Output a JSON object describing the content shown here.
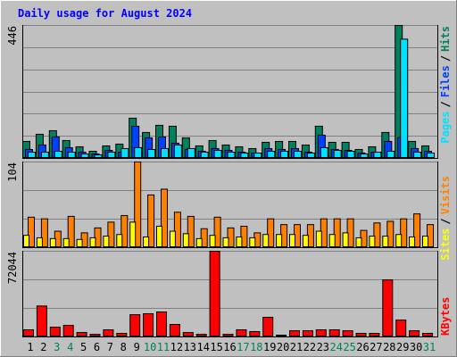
{
  "title": "Daily usage for August 2024",
  "legend_separator": "/",
  "categories": [
    "1",
    "2",
    "3",
    "4",
    "5",
    "6",
    "7",
    "8",
    "9",
    "10",
    "11",
    "12",
    "13",
    "14",
    "15",
    "16",
    "17",
    "18",
    "19",
    "20",
    "21",
    "22",
    "23",
    "24",
    "25",
    "26",
    "27",
    "28",
    "29",
    "30",
    "31"
  ],
  "weekend_categories": [
    "3",
    "4",
    "10",
    "11",
    "17",
    "18",
    "24",
    "25",
    "31"
  ],
  "weekday_color": "#000000",
  "weekend_color": "#00805c",
  "chart_data": [
    {
      "type": "bar",
      "ylim": [
        0,
        446
      ],
      "yticks": [
        446
      ],
      "grid": true,
      "series": [
        {
          "name": "Hits",
          "color": "#00805c",
          "values": [
            57,
            81,
            93,
            60,
            39,
            24,
            42,
            48,
            135,
            87,
            111,
            108,
            69,
            42,
            60,
            45,
            39,
            33,
            54,
            57,
            57,
            45,
            108,
            54,
            54,
            30,
            39,
            87,
            446,
            57,
            42
          ]
        },
        {
          "name": "Files",
          "color": "#0040ff",
          "values": [
            30,
            45,
            72,
            36,
            21,
            15,
            27,
            21,
            108,
            69,
            72,
            51,
            30,
            24,
            33,
            27,
            21,
            18,
            33,
            30,
            33,
            21,
            78,
            30,
            27,
            18,
            21,
            57,
            70,
            33,
            24
          ]
        },
        {
          "name": "Pages",
          "color": "#00e0ff",
          "values": [
            21,
            21,
            24,
            21,
            15,
            12,
            21,
            33,
            36,
            30,
            33,
            45,
            33,
            21,
            27,
            21,
            18,
            18,
            24,
            24,
            24,
            18,
            36,
            27,
            24,
            15,
            21,
            24,
            400,
            21,
            18
          ]
        }
      ]
    },
    {
      "type": "bar",
      "ylim": [
        0,
        104
      ],
      "yticks": [
        104
      ],
      "grid": true,
      "series": [
        {
          "name": "Visits",
          "color": "#ff8000",
          "values": [
            37,
            35,
            20,
            38,
            18,
            24,
            31,
            39,
            104,
            64,
            71,
            43,
            38,
            23,
            37,
            24,
            26,
            18,
            35,
            28,
            28,
            28,
            35,
            35,
            35,
            21,
            30,
            32,
            35,
            41,
            28
          ]
        },
        {
          "name": "Sites",
          "color": "#ffff00",
          "values": [
            15,
            12,
            11,
            11,
            10,
            12,
            14,
            16,
            31,
            13,
            26,
            20,
            17,
            11,
            15,
            12,
            13,
            12,
            16,
            16,
            16,
            15,
            20,
            16,
            18,
            12,
            14,
            14,
            16,
            13,
            14
          ]
        }
      ]
    },
    {
      "type": "bar",
      "ylim": [
        0,
        72044
      ],
      "yticks": [
        72044
      ],
      "grid": true,
      "series": [
        {
          "name": "KBytes",
          "color": "#ff0000",
          "values": [
            6000,
            26000,
            8200,
            9700,
            3700,
            2200,
            6000,
            3000,
            18700,
            19500,
            21000,
            10500,
            3700,
            2200,
            72044,
            2200,
            6000,
            4500,
            16500,
            1500,
            5200,
            5200,
            6000,
            6000,
            5200,
            3000,
            3000,
            48000,
            14200,
            5200,
            3000
          ]
        }
      ]
    }
  ]
}
